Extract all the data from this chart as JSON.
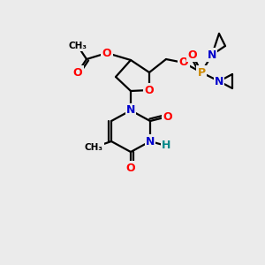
{
  "bg_color": "#ebebeb",
  "bond_color": "#000000",
  "bond_width": 1.6,
  "atom_colors": {
    "O": "#ff0000",
    "N": "#0000cc",
    "P": "#cc8800",
    "H": "#008888",
    "C": "#000000"
  },
  "font_size": 9,
  "fig_size": [
    3.0,
    3.0
  ],
  "dpi": 100
}
